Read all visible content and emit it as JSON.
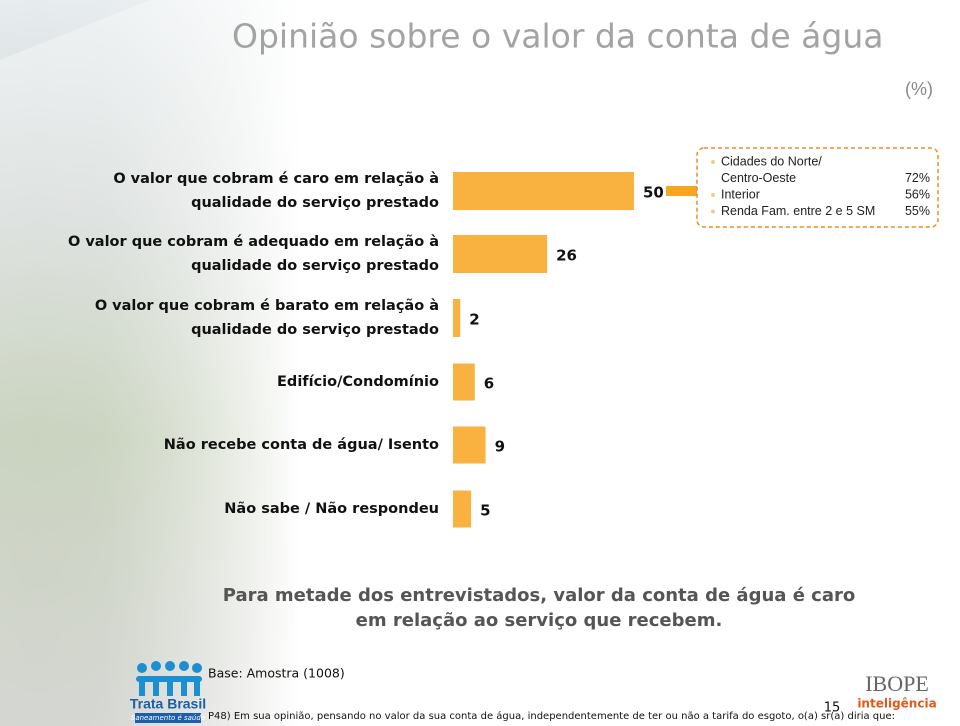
{
  "header": {
    "title": "Opinião sobre o valor da conta de água",
    "unit": "(%)"
  },
  "chart_data": {
    "type": "hbar",
    "color": "#f9b23f",
    "categories": [
      [
        "O valor que cobram é caro em relação à",
        "qualidade do serviço prestado"
      ],
      [
        "O valor que cobram é adequado em relação à",
        "qualidade do serviço prestado"
      ],
      [
        "O valor que cobram é barato em relação à",
        "qualidade do serviço prestado"
      ],
      [
        "Edifício/Condomínio"
      ],
      [
        "Não recebe conta de água/ Isento"
      ],
      [
        "Não sabe / Não respondeu"
      ]
    ],
    "values": [
      50,
      26,
      2,
      6,
      9,
      5
    ]
  },
  "callout": {
    "items": [
      {
        "label": [
          "Cidades do Norte/",
          "Centro-Oeste"
        ],
        "value": "72%"
      },
      {
        "label": [
          "Interior"
        ],
        "value": "56%"
      },
      {
        "label": [
          "Renda Fam. entre 2 e 5 SM"
        ],
        "value": "55%"
      }
    ]
  },
  "conclusion": [
    "Para metade dos entrevistados, valor da conta de água é caro",
    "em relação ao serviço que recebem."
  ],
  "footer": {
    "base": "Base: Amostra (1008)",
    "question": "P48) Em sua opinião, pensando no valor da sua conta de água, independentemente de ter ou não a tarifa do esgoto, o(a) sr(a) diria que:",
    "page": "15",
    "logo_left": "Trata Brasil",
    "logo_left_sub": "Saneamento é saúde",
    "logo_right": "IBOPE",
    "logo_right_sub": "inteligência"
  }
}
